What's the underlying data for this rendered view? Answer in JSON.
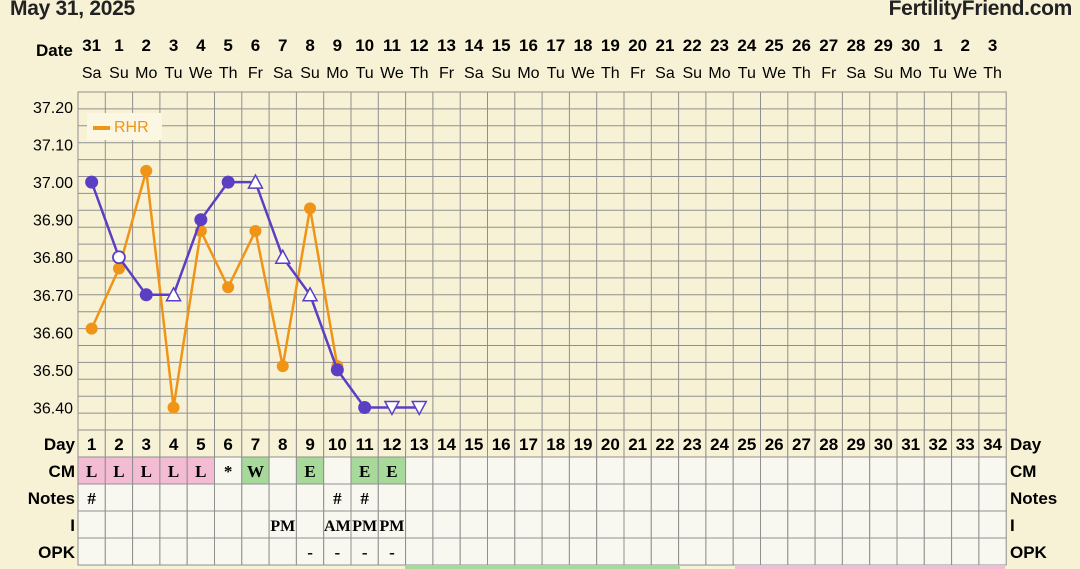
{
  "header": {
    "date": "May 31, 2025",
    "brand": "FertilityFriend.com"
  },
  "row_labels": {
    "date": "Date",
    "day": "Day",
    "cm": "CM",
    "notes": "Notes",
    "i": "I",
    "opk": "OPK"
  },
  "dates": [
    "31",
    "1",
    "2",
    "3",
    "4",
    "5",
    "6",
    "7",
    "8",
    "9",
    "10",
    "11",
    "12",
    "13",
    "14",
    "15",
    "16",
    "17",
    "18",
    "19",
    "20",
    "21",
    "22",
    "23",
    "24",
    "25",
    "26",
    "27",
    "28",
    "29",
    "30",
    "1",
    "2",
    "3"
  ],
  "weekdays": [
    "Sa",
    "Su",
    "Mo",
    "Tu",
    "We",
    "Th",
    "Fr",
    "Sa",
    "Su",
    "Mo",
    "Tu",
    "We",
    "Th",
    "Fr",
    "Sa",
    "Su",
    "Mo",
    "Tu",
    "We",
    "Th",
    "Fr",
    "Sa",
    "Su",
    "Mo",
    "Tu",
    "We",
    "Th",
    "Fr",
    "Sa",
    "Su",
    "Mo",
    "Tu",
    "We",
    "Th"
  ],
  "days": [
    "1",
    "2",
    "3",
    "4",
    "5",
    "6",
    "7",
    "8",
    "9",
    "10",
    "11",
    "12",
    "13",
    "14",
    "15",
    "16",
    "17",
    "18",
    "19",
    "20",
    "21",
    "22",
    "23",
    "24",
    "25",
    "26",
    "27",
    "28",
    "29",
    "30",
    "31",
    "32",
    "33",
    "34"
  ],
  "cm": [
    "L",
    "L",
    "L",
    "L",
    "L",
    "*",
    "W",
    "",
    "E",
    "",
    "E",
    "E",
    "",
    "",
    "",
    "",
    "",
    "",
    "",
    "",
    "",
    "",
    "",
    "",
    "",
    "",
    "",
    "",
    "",
    "",
    "",
    "",
    "",
    ""
  ],
  "notes": [
    "#",
    "",
    "",
    "",
    "",
    "",
    "",
    "",
    "",
    "#",
    "#",
    "",
    "",
    "",
    "",
    "",
    "",
    "",
    "",
    "",
    "",
    "",
    "",
    "",
    "",
    "",
    "",
    "",
    "",
    "",
    "",
    "",
    "",
    ""
  ],
  "i": [
    "",
    "",
    "",
    "",
    "",
    "",
    "",
    "PM",
    "",
    "AM",
    "PM",
    "PM",
    "",
    "",
    "",
    "",
    "",
    "",
    "",
    "",
    "",
    "",
    "",
    "",
    "",
    "",
    "",
    "",
    "",
    "",
    "",
    "",
    "",
    ""
  ],
  "opk": [
    "",
    "",
    "",
    "",
    "",
    "",
    "",
    "",
    "-",
    "-",
    "-",
    "-",
    "",
    "",
    "",
    "",
    "",
    "",
    "",
    "",
    "",
    "",
    "",
    "",
    "",
    "",
    "",
    "",
    "",
    "",
    "",
    "",
    "",
    ""
  ],
  "colors": {
    "background": "#f7f2d6",
    "grid": "#8f8f8f",
    "temp_line": "#5a3fc4",
    "rhr_line": "#f09418",
    "cm_L": "#f4bcd3",
    "cm_W": "#a6d99a",
    "cm_E": "#a6d99a",
    "cell": "#f8f8f0"
  },
  "chart_data": {
    "type": "line",
    "x_label": "Day",
    "ylim": [
      36.34,
      37.24
    ],
    "y_ticks": [
      "36.40",
      "36.50",
      "36.60",
      "36.70",
      "36.80",
      "36.90",
      "37.00",
      "37.10",
      "37.20"
    ],
    "grid": true,
    "legend": {
      "entries": [
        "RHR"
      ],
      "position": "top-left"
    },
    "series": [
      {
        "key": "temperature",
        "x": [
          1,
          2,
          3,
          4,
          5,
          6,
          7,
          8,
          9,
          10,
          11,
          12,
          13
        ],
        "y": [
          37.0,
          36.8,
          36.7,
          36.7,
          36.9,
          37.0,
          37.0,
          36.8,
          36.7,
          36.5,
          36.4,
          36.4,
          36.4
        ],
        "markers": [
          "filled",
          "open-circle",
          "filled",
          "open-triangle",
          "filled",
          "filled",
          "open-triangle",
          "open-triangle",
          "open-triangle",
          "filled",
          "filled",
          "open-triangle-down",
          "open-triangle-down"
        ]
      },
      {
        "key": "rhr",
        "name": "RHR",
        "x": [
          1,
          2,
          3,
          4,
          5,
          6,
          7,
          8,
          9,
          10
        ],
        "y": [
          36.61,
          36.77,
          37.03,
          36.4,
          36.87,
          36.72,
          36.87,
          36.51,
          36.93,
          36.51
        ]
      }
    ]
  }
}
